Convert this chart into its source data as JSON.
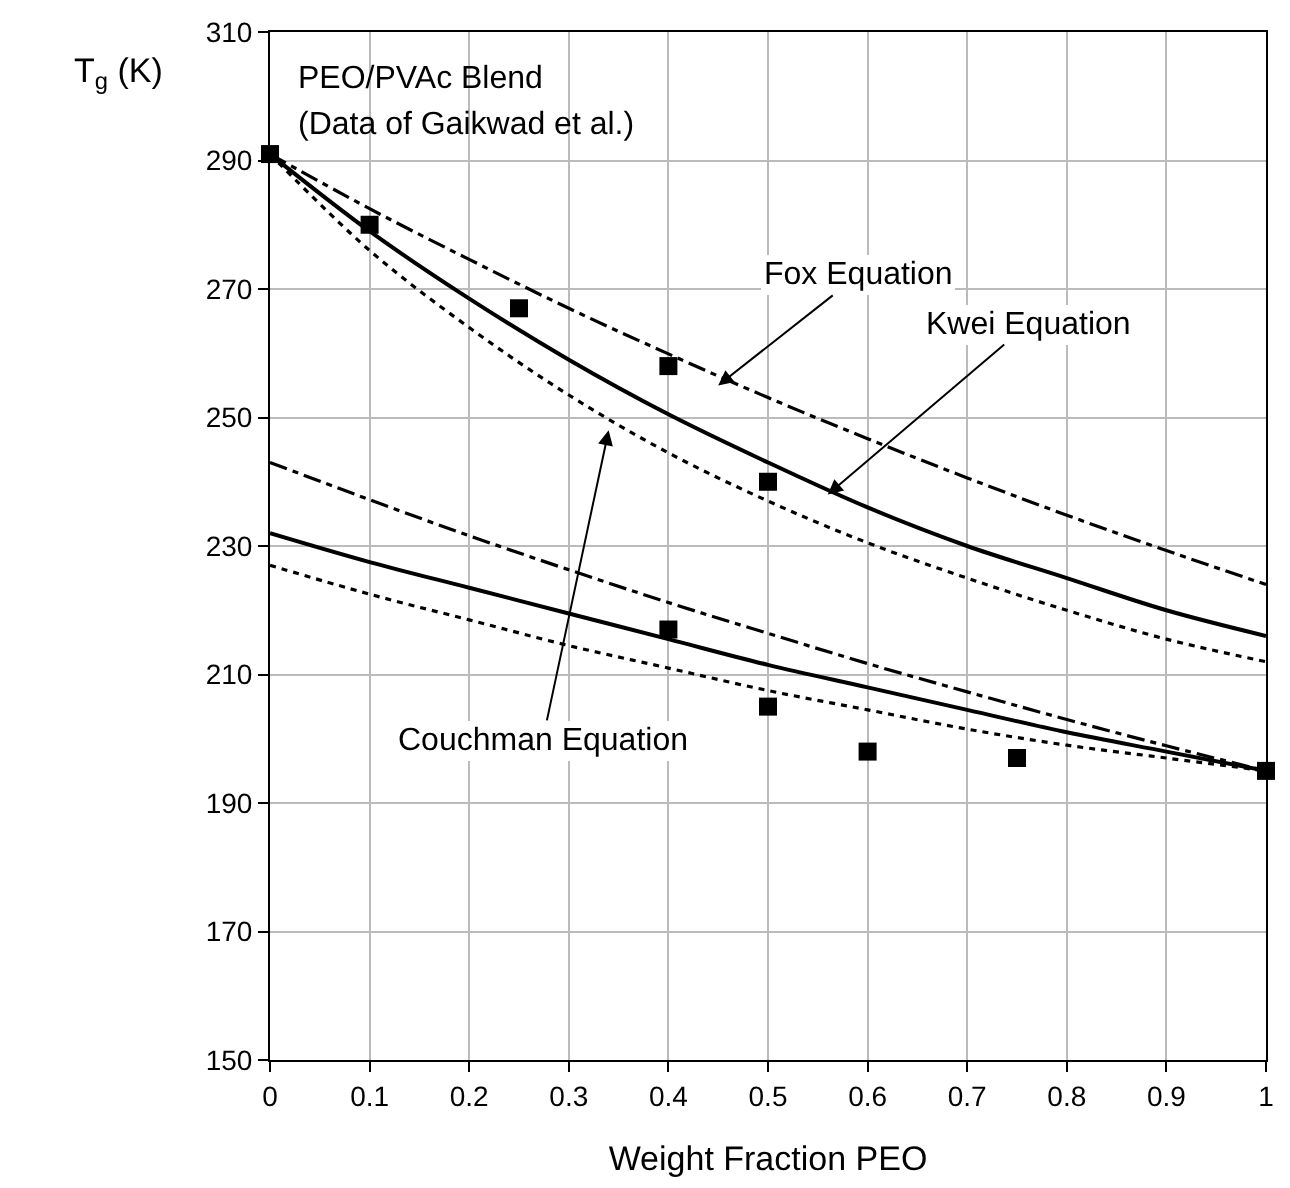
{
  "chart_data": {
    "type": "line",
    "xlabel": "Weight Fraction PEO",
    "ylabel": "T$_{g}$ (K)",
    "x": [
      0,
      0.1,
      0.2,
      0.3,
      0.4,
      0.5,
      0.6,
      0.7,
      0.8,
      0.9,
      1
    ],
    "series": [
      {
        "type": "scatter",
        "marker": "square",
        "color": "#000000",
        "x": [
          0,
          0.1,
          0.25,
          0.4,
          0.5,
          0.4,
          0.5,
          0.6,
          0.75,
          1
        ],
        "values": [
          291,
          280,
          267,
          258,
          240,
          217,
          205,
          198,
          197,
          195
        ]
      },
      {
        "line_style": "dashdot",
        "color": "#000000",
        "values": [
          291,
          282.5,
          274.6,
          267.0,
          259.9,
          253.1,
          246.7,
          240.6,
          234.8,
          229.3,
          224
        ]
      },
      {
        "line_style": "solid",
        "color": "#000000",
        "values": [
          291,
          279,
          268.5,
          259,
          250.5,
          243,
          236,
          230,
          225,
          220,
          216
        ]
      },
      {
        "line_style": "dotted",
        "color": "#000000",
        "values": [
          291,
          276,
          264,
          253.5,
          244.5,
          237,
          230.5,
          225,
          220,
          215.5,
          212
        ]
      },
      {
        "line_style": "dashdot",
        "color": "#000000",
        "values": [
          243,
          237.2,
          231.6,
          226.3,
          221.2,
          216.4,
          211.7,
          207.3,
          203.0,
          198.9,
          195
        ]
      },
      {
        "line_style": "solid",
        "color": "#000000",
        "values": [
          232,
          227.5,
          223.5,
          219.5,
          215.5,
          211.5,
          208,
          204.5,
          201,
          198,
          195
        ]
      },
      {
        "line_style": "dotted",
        "color": "#000000",
        "values": [
          227,
          222.5,
          218.5,
          214.5,
          211,
          207.5,
          204.5,
          201.5,
          199,
          197,
          195
        ]
      }
    ],
    "xlim": [
      0,
      1
    ],
    "xticks": [
      0,
      0.1,
      0.2,
      0.3,
      0.4,
      0.5,
      0.6,
      0.7,
      0.8,
      0.9,
      1
    ],
    "ylim": [
      150,
      310
    ],
    "yticks": [
      150,
      170,
      190,
      210,
      230,
      250,
      270,
      290,
      310
    ],
    "grid": true,
    "legend": false,
    "annotations": [
      "PEO/PVAc Blend",
      "(Data of Gaikwad et al.)",
      {
        "text": "Fox Equation",
        "x": 0.45,
        "y": 255
      },
      {
        "text": "Kwei Equation",
        "x": 0.56,
        "y": 238
      },
      {
        "text": "Couchman Equation",
        "x": 0.34,
        "y": 248
      }
    ]
  }
}
